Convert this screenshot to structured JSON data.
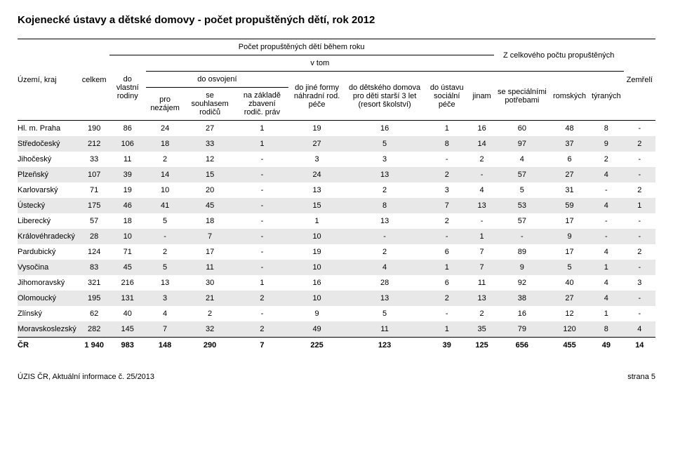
{
  "title": "Kojenecké ústavy a dětské domovy - počet propuštěných dětí, rok 2012",
  "headers": {
    "region": "Území, kraj",
    "total": "celkem",
    "group_during": "Počet propuštěných dětí během roku",
    "vtom": "v tom",
    "own_family": "do vlastní rodiny",
    "adoption_group": "do osvojení",
    "pro_nezajem": "pro nezájem",
    "se_souhlasem": "se souhlasem rodičů",
    "na_zaklade": "na základě zbavení rodič. práv",
    "jine_formy": "do jiné formy náhradní rod. péče",
    "detskeho": "do dětského domova pro děti starší 3 let (resort školství)",
    "ustavu": "do ústavu sociální péče",
    "jinam": "jinam",
    "group_total": "Z celkového počtu propuštěných",
    "special": "se speciálními potřebami",
    "romskych": "romských",
    "tyranych": "týraných",
    "zemreli": "Zemřelí"
  },
  "rows": [
    {
      "label": "Hl. m. Praha",
      "cells": [
        "190",
        "86",
        "24",
        "27",
        "1",
        "19",
        "16",
        "1",
        "16",
        "60",
        "48",
        "8",
        "-"
      ]
    },
    {
      "label": "Středočeský",
      "cells": [
        "212",
        "106",
        "18",
        "33",
        "1",
        "27",
        "5",
        "8",
        "14",
        "97",
        "37",
        "9",
        "2"
      ]
    },
    {
      "label": "Jihočeský",
      "cells": [
        "33",
        "11",
        "2",
        "12",
        "-",
        "3",
        "3",
        "-",
        "2",
        "4",
        "6",
        "2",
        "-"
      ]
    },
    {
      "label": "Plzeňský",
      "cells": [
        "107",
        "39",
        "14",
        "15",
        "-",
        "24",
        "13",
        "2",
        "-",
        "57",
        "27",
        "4",
        "-"
      ]
    },
    {
      "label": "Karlovarský",
      "cells": [
        "71",
        "19",
        "10",
        "20",
        "-",
        "13",
        "2",
        "3",
        "4",
        "5",
        "31",
        "-",
        "2"
      ]
    },
    {
      "label": "Ústecký",
      "cells": [
        "175",
        "46",
        "41",
        "45",
        "-",
        "15",
        "8",
        "7",
        "13",
        "53",
        "59",
        "4",
        "1"
      ]
    },
    {
      "label": "Liberecký",
      "cells": [
        "57",
        "18",
        "5",
        "18",
        "-",
        "1",
        "13",
        "2",
        "-",
        "57",
        "17",
        "-",
        "-"
      ]
    },
    {
      "label": "Královéhradecký",
      "cells": [
        "28",
        "10",
        "-",
        "7",
        "-",
        "10",
        "-",
        "-",
        "1",
        "-",
        "9",
        "-",
        "-"
      ]
    },
    {
      "label": "Pardubický",
      "cells": [
        "124",
        "71",
        "2",
        "17",
        "-",
        "19",
        "2",
        "6",
        "7",
        "89",
        "17",
        "4",
        "2"
      ]
    },
    {
      "label": "Vysočina",
      "cells": [
        "83",
        "45",
        "5",
        "11",
        "-",
        "10",
        "4",
        "1",
        "7",
        "9",
        "5",
        "1",
        "-"
      ]
    },
    {
      "label": "Jihomoravský",
      "cells": [
        "321",
        "216",
        "13",
        "30",
        "1",
        "16",
        "28",
        "6",
        "11",
        "92",
        "40",
        "4",
        "3"
      ]
    },
    {
      "label": "Olomoucký",
      "cells": [
        "195",
        "131",
        "3",
        "21",
        "2",
        "10",
        "13",
        "2",
        "13",
        "38",
        "27",
        "4",
        "-"
      ]
    },
    {
      "label": "Zlínský",
      "cells": [
        "62",
        "40",
        "4",
        "2",
        "-",
        "9",
        "5",
        "-",
        "2",
        "16",
        "12",
        "1",
        "-"
      ]
    },
    {
      "label": "Moravskoslezský",
      "cells": [
        "282",
        "145",
        "7",
        "32",
        "2",
        "49",
        "11",
        "1",
        "35",
        "79",
        "120",
        "8",
        "4"
      ]
    }
  ],
  "total": {
    "label": "ČR",
    "cells": [
      "1 940",
      "983",
      "148",
      "290",
      "7",
      "225",
      "123",
      "39",
      "125",
      "656",
      "455",
      "49",
      "14"
    ]
  },
  "footer_left": "ÚZIS ČR, Aktuální informace č. 25/2013",
  "footer_right": "strana 5",
  "style": {
    "alt_bg": "#e8e8e8"
  }
}
